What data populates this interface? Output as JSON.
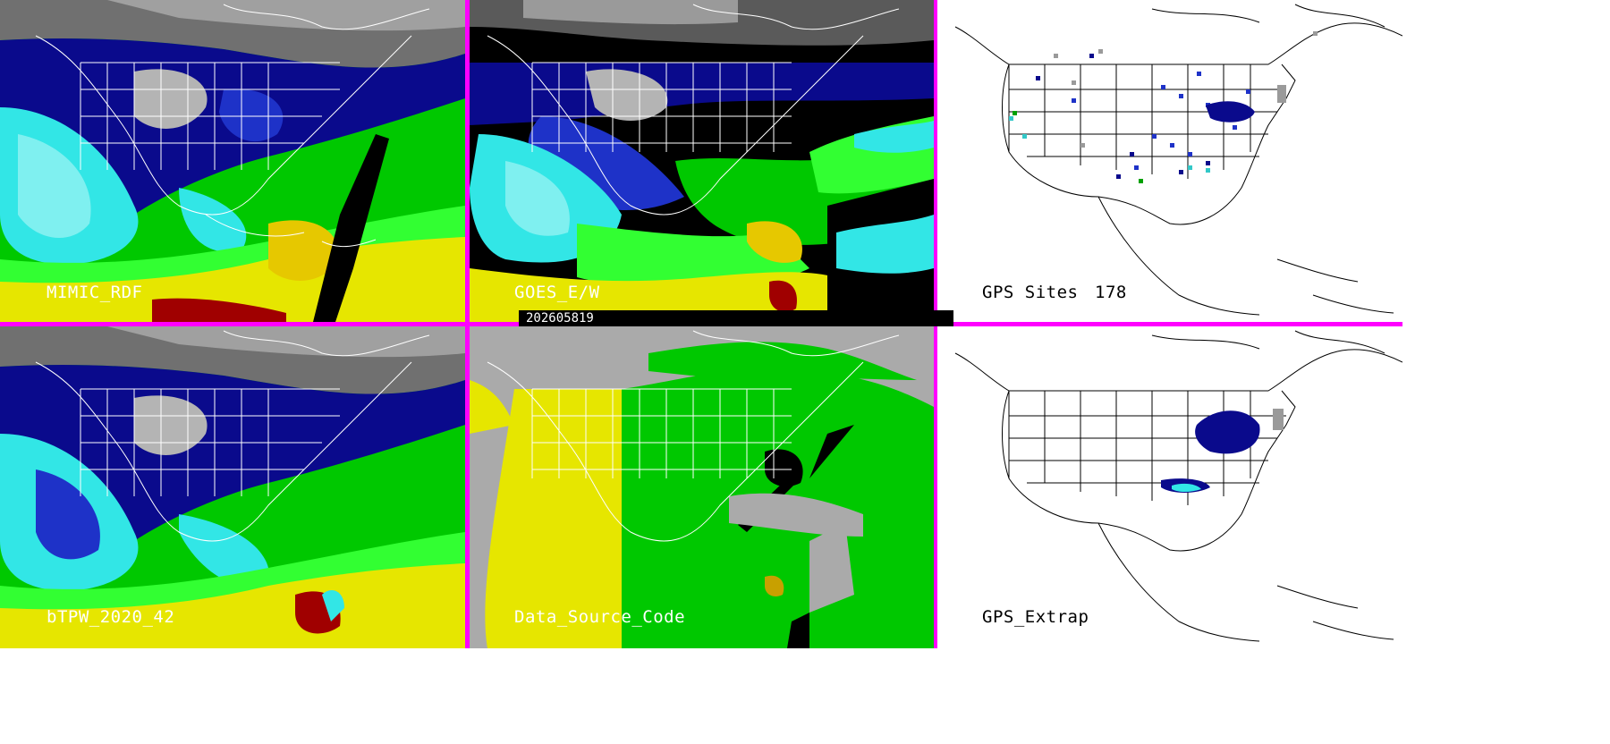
{
  "timestamp": "202605819",
  "panels": [
    {
      "id": "p1",
      "label": "MIMIC_RDF",
      "theme": "tpw"
    },
    {
      "id": "p2",
      "label": "GOES_E/W",
      "theme": "goes"
    },
    {
      "id": "p3",
      "label": "GPS Sites",
      "count": "178",
      "theme": "gps"
    },
    {
      "id": "p4",
      "label": "bTPW_2020_42",
      "theme": "tpw"
    },
    {
      "id": "p5",
      "label": "Data_Source_Code",
      "theme": "source"
    },
    {
      "id": "p6",
      "label": "GPS_Extrap",
      "theme": "gps"
    }
  ],
  "colors": {
    "divider": "#ff00ff",
    "tpw_palette": [
      "#505050",
      "#9a9a9a",
      "#c8c8c8",
      "#0a0a8c",
      "#1e32c8",
      "#32e6e6",
      "#00c800",
      "#32ff32",
      "#e6e600",
      "#e6c800",
      "#a00000"
    ],
    "source_palette": [
      "#aaaaaa",
      "#e6e600",
      "#00c800",
      "#000000"
    ]
  }
}
